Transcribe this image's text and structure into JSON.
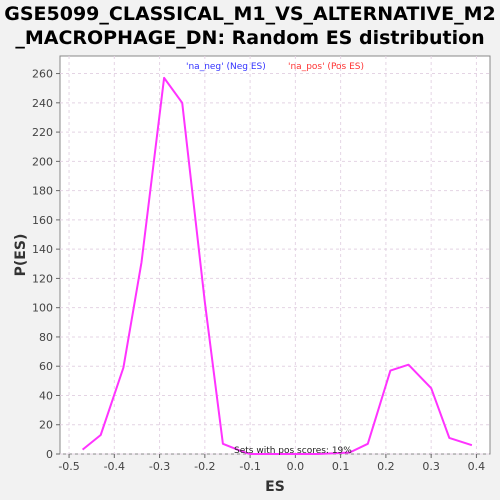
{
  "chart_data": {
    "type": "line",
    "title_line1": "GSE5099_CLASSICAL_M1_VS_ALTERNATIVE_M2",
    "title_line2": "_MACROPHAGE_DN: Random ES distribution",
    "xlabel": "ES",
    "ylabel": "P(ES)",
    "xlim": [
      -0.52,
      0.43
    ],
    "ylim": [
      0,
      272
    ],
    "xticks": [
      -0.5,
      -0.4,
      -0.3,
      -0.2,
      -0.1,
      0.0,
      0.1,
      0.2,
      0.3,
      0.4
    ],
    "xtick_labels": [
      "-0.5",
      "-0.4",
      "-0.3",
      "-0.2",
      "-0.1",
      "0.0",
      "0.1",
      "0.2",
      "0.3",
      "0.4"
    ],
    "yticks": [
      0,
      20,
      40,
      60,
      80,
      100,
      120,
      140,
      160,
      180,
      200,
      220,
      240,
      260
    ],
    "ytick_labels": [
      "0",
      "20",
      "40",
      "60",
      "80",
      "100",
      "120",
      "140",
      "160",
      "180",
      "200",
      "220",
      "240",
      "260"
    ],
    "grid": true,
    "legend": [
      {
        "label": "'na_neg' (Neg ES)",
        "color": "#3333ff"
      },
      {
        "label": "'na_pos' (Pos ES)",
        "color": "#ff3333"
      }
    ],
    "annotation": "Sets with pos scores: 19%",
    "series": [
      {
        "color": "#ff33ff",
        "points": [
          [
            -0.47,
            3
          ],
          [
            -0.43,
            13
          ],
          [
            -0.38,
            59
          ],
          [
            -0.34,
            131
          ],
          [
            -0.29,
            257
          ],
          [
            -0.25,
            240
          ],
          [
            -0.2,
            104
          ],
          [
            -0.16,
            7
          ],
          [
            -0.12,
            2
          ],
          [
            -0.1,
            0
          ],
          [
            0.05,
            0
          ],
          [
            0.12,
            1
          ],
          [
            0.16,
            7
          ],
          [
            0.21,
            57
          ],
          [
            0.25,
            61
          ],
          [
            0.3,
            45
          ],
          [
            0.34,
            11
          ],
          [
            0.39,
            6
          ]
        ]
      }
    ]
  }
}
